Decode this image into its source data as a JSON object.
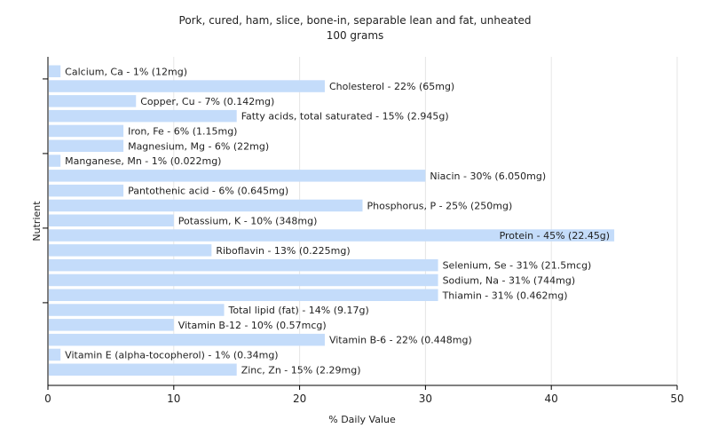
{
  "chart_data": {
    "type": "bar",
    "orientation": "horizontal",
    "title": "Pork, cured, ham, slice, bone-in, separable lean and fat, unheated",
    "subtitle": "100 grams",
    "xlabel": "% Daily Value",
    "ylabel": "Nutrient",
    "xlim": [
      0,
      50
    ],
    "xticks": [
      0,
      10,
      20,
      30,
      40,
      50
    ],
    "grid": true,
    "bar_color": "#c4dcfa",
    "categories": [
      "Calcium, Ca - 1% (12mg)",
      "Cholesterol - 22% (65mg)",
      "Copper, Cu - 7% (0.142mg)",
      "Fatty acids, total saturated - 15% (2.945g)",
      "Iron, Fe - 6% (1.15mg)",
      "Magnesium, Mg - 6% (22mg)",
      "Manganese, Mn - 1% (0.022mg)",
      "Niacin - 30% (6.050mg)",
      "Pantothenic acid - 6% (0.645mg)",
      "Phosphorus, P - 25% (250mg)",
      "Potassium, K - 10% (348mg)",
      "Protein - 45% (22.45g)",
      "Riboflavin - 13% (0.225mg)",
      "Selenium, Se - 31% (21.5mcg)",
      "Sodium, Na - 31% (744mg)",
      "Thiamin - 31% (0.462mg)",
      "Total lipid (fat) - 14% (9.17g)",
      "Vitamin B-12 - 10% (0.57mcg)",
      "Vitamin B-6 - 22% (0.448mg)",
      "Vitamin E (alpha-tocopherol) - 1% (0.34mg)",
      "Zinc, Zn - 15% (2.29mg)"
    ],
    "values": [
      1,
      22,
      7,
      15,
      6,
      6,
      1,
      30,
      6,
      25,
      10,
      45,
      13,
      31,
      31,
      31,
      14,
      10,
      22,
      1,
      15
    ]
  }
}
